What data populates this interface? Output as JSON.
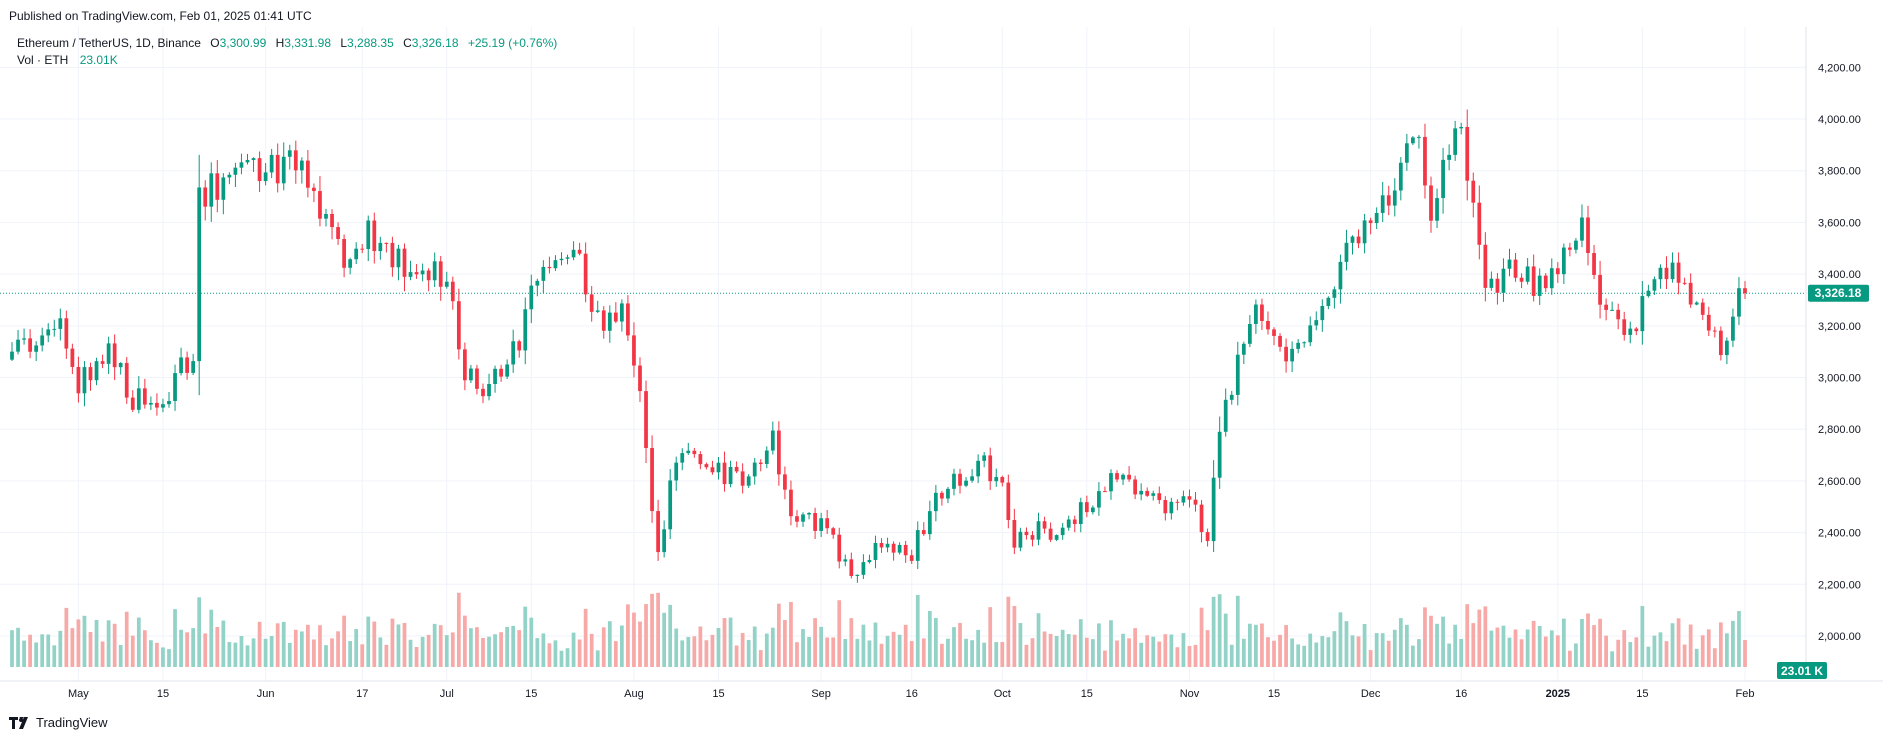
{
  "header": {
    "published": "Published on TradingView.com, Feb 01, 2025 01:41 UTC"
  },
  "legend": {
    "symbol": "Ethereum / TetherUS, 1D, Binance",
    "o_label": "O",
    "o_value": "3,300.99",
    "h_label": "H",
    "h_value": "3,331.98",
    "l_label": "L",
    "l_value": "3,288.35",
    "c_label": "C",
    "c_value": "3,326.18",
    "change": "+25.19 (+0.76%)",
    "vol_label": "Vol · ETH",
    "vol_value": "23.01K"
  },
  "branding": {
    "name": "TradingView"
  },
  "colors": {
    "up": "#089981",
    "down": "#f23645",
    "up_vol": "#92d2c7",
    "down_vol": "#f7a9a7",
    "grid": "#f0f3fa"
  },
  "chart_data": {
    "type": "candlestick",
    "interval": "1D",
    "x_range": [
      "2024-04-20",
      "2025-02-01"
    ],
    "ylim": [
      1880,
      4240
    ],
    "y_ticks": [
      "4,200.00",
      "4,000.00",
      "3,800.00",
      "3,600.00",
      "3,400.00",
      "3,200.00",
      "3,000.00",
      "2,800.00",
      "2,600.00",
      "2,400.00",
      "2,200.00",
      "2,000.00"
    ],
    "x_ticks": [
      {
        "label": "May",
        "date": "2024-05-01"
      },
      {
        "label": "15",
        "date": "2024-05-15"
      },
      {
        "label": "Jun",
        "date": "2024-06-01"
      },
      {
        "label": "17",
        "date": "2024-06-17"
      },
      {
        "label": "Jul",
        "date": "2024-07-01"
      },
      {
        "label": "15",
        "date": "2024-07-15"
      },
      {
        "label": "Aug",
        "date": "2024-08-01"
      },
      {
        "label": "15",
        "date": "2024-08-15"
      },
      {
        "label": "Sep",
        "date": "2024-09-01"
      },
      {
        "label": "16",
        "date": "2024-09-16"
      },
      {
        "label": "Oct",
        "date": "2024-10-01"
      },
      {
        "label": "15",
        "date": "2024-10-15"
      },
      {
        "label": "Nov",
        "date": "2024-11-01"
      },
      {
        "label": "15",
        "date": "2024-11-15"
      },
      {
        "label": "Dec",
        "date": "2024-12-01"
      },
      {
        "label": "16",
        "date": "2024-12-16"
      },
      {
        "label": "2025",
        "date": "2025-01-01"
      },
      {
        "label": "15",
        "date": "2025-01-15"
      },
      {
        "label": "Feb",
        "date": "2025-02-01"
      }
    ],
    "last_price": 3326.18,
    "last_price_label": "3,326.18",
    "last_volume_label": "23.01 K",
    "close_path": [
      [
        "2024-04-20",
        3100
      ],
      [
        "2024-04-25",
        3140
      ],
      [
        "2024-04-28",
        3260
      ],
      [
        "2024-05-01",
        2980
      ],
      [
        "2024-05-06",
        3120
      ],
      [
        "2024-05-10",
        2920
      ],
      [
        "2024-05-14",
        2870
      ],
      [
        "2024-05-17",
        3000
      ],
      [
        "2024-05-20",
        3080
      ],
      [
        "2024-05-21",
        3700
      ],
      [
        "2024-05-24",
        3750
      ],
      [
        "2024-05-28",
        3850
      ],
      [
        "2024-06-03",
        3790
      ],
      [
        "2024-06-07",
        3850
      ],
      [
        "2024-06-10",
        3650
      ],
      [
        "2024-06-14",
        3480
      ],
      [
        "2024-06-18",
        3560
      ],
      [
        "2024-06-22",
        3470
      ],
      [
        "2024-06-28",
        3380
      ],
      [
        "2024-07-01",
        3420
      ],
      [
        "2024-07-04",
        3000
      ],
      [
        "2024-07-08",
        2950
      ],
      [
        "2024-07-13",
        3150
      ],
      [
        "2024-07-16",
        3380
      ],
      [
        "2024-07-22",
        3530
      ],
      [
        "2024-07-25",
        3200
      ],
      [
        "2024-07-30",
        3250
      ],
      [
        "2024-08-02",
        2920
      ],
      [
        "2024-08-05",
        2300
      ],
      [
        "2024-08-08",
        2700
      ],
      [
        "2024-08-13",
        2650
      ],
      [
        "2024-08-18",
        2600
      ],
      [
        "2024-08-24",
        2760
      ],
      [
        "2024-08-27",
        2450
      ],
      [
        "2024-09-01",
        2430
      ],
      [
        "2024-09-06",
        2250
      ],
      [
        "2024-09-10",
        2330
      ],
      [
        "2024-09-16",
        2320
      ],
      [
        "2024-09-20",
        2550
      ],
      [
        "2024-09-27",
        2680
      ],
      [
        "2024-10-01",
        2600
      ],
      [
        "2024-10-03",
        2380
      ],
      [
        "2024-10-10",
        2420
      ],
      [
        "2024-10-15",
        2500
      ],
      [
        "2024-10-20",
        2650
      ],
      [
        "2024-10-24",
        2550
      ],
      [
        "2024-10-28",
        2500
      ],
      [
        "2024-11-01",
        2530
      ],
      [
        "2024-11-04",
        2400
      ],
      [
        "2024-11-06",
        2800
      ],
      [
        "2024-11-10",
        3150
      ],
      [
        "2024-11-12",
        3300
      ],
      [
        "2024-11-17",
        3100
      ],
      [
        "2024-11-22",
        3250
      ],
      [
        "2024-11-25",
        3380
      ],
      [
        "2024-11-30",
        3630
      ],
      [
        "2024-12-04",
        3700
      ],
      [
        "2024-12-08",
        3970
      ],
      [
        "2024-12-11",
        3650
      ],
      [
        "2024-12-16",
        3980
      ],
      [
        "2024-12-19",
        3500
      ],
      [
        "2024-12-20",
        3300
      ],
      [
        "2024-12-24",
        3450
      ],
      [
        "2024-12-29",
        3350
      ],
      [
        "2025-01-01",
        3420
      ],
      [
        "2025-01-05",
        3600
      ],
      [
        "2025-01-07",
        3400
      ],
      [
        "2025-01-10",
        3220
      ],
      [
        "2025-01-13",
        3150
      ],
      [
        "2025-01-16",
        3330
      ],
      [
        "2025-01-19",
        3420
      ],
      [
        "2025-01-22",
        3320
      ],
      [
        "2025-01-25",
        3300
      ],
      [
        "2025-01-28",
        3100
      ],
      [
        "2025-01-31",
        3326
      ]
    ]
  }
}
